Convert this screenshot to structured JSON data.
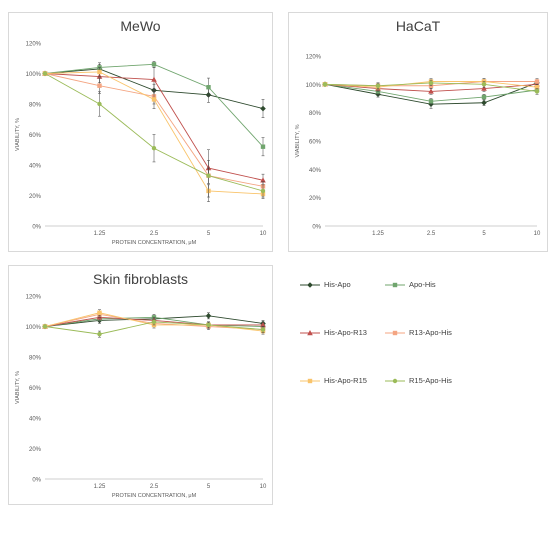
{
  "chart_data": [
    {
      "type": "line",
      "title": "MeWo",
      "xlabel": "PROTEIN CONCENTRATION, μM",
      "ylabel": "VIABILITY, %",
      "categories": [
        "",
        "1.25",
        "2.5",
        "5",
        "10"
      ],
      "ylim": [
        0,
        120
      ],
      "yticks": [
        "0%",
        "20%",
        "40%",
        "60%",
        "80%",
        "100%",
        "120%"
      ],
      "series": [
        {
          "name": "His-Apo",
          "values": [
            100,
            103,
            89,
            86,
            77
          ],
          "err": [
            0,
            3,
            4,
            5,
            6
          ]
        },
        {
          "name": "Apo-His",
          "values": [
            100,
            104,
            106,
            91,
            52
          ],
          "err": [
            0,
            3,
            2,
            6,
            6
          ]
        },
        {
          "name": "His-Apo-R13",
          "values": [
            100,
            98,
            96,
            38,
            30
          ],
          "err": [
            0,
            4,
            8,
            5,
            4
          ]
        },
        {
          "name": "R13-Apo-His",
          "values": [
            100,
            92,
            85,
            33,
            26
          ],
          "err": [
            0,
            5,
            5,
            5,
            3
          ]
        },
        {
          "name": "His-Apo-R15",
          "values": [
            100,
            101,
            83,
            23,
            21
          ],
          "err": [
            0,
            3,
            6,
            4,
            3
          ]
        },
        {
          "name": "R15-Apo-His",
          "values": [
            100,
            80,
            51,
            33,
            23
          ],
          "err": [
            0,
            8,
            9,
            17,
            4
          ]
        }
      ]
    },
    {
      "type": "line",
      "title": "HaCaT",
      "xlabel": "",
      "ylabel": "VIABILITY, %",
      "categories": [
        "",
        "1.25",
        "2.5",
        "5",
        "10"
      ],
      "ylim": [
        0,
        120
      ],
      "yticks": [
        "0%",
        "20%",
        "40%",
        "60%",
        "80%",
        "100%",
        "120%"
      ],
      "series": [
        {
          "name": "His-Apo",
          "values": [
            100,
            93,
            86,
            87,
            101
          ],
          "err": [
            0,
            2,
            3,
            2,
            2
          ]
        },
        {
          "name": "Apo-His",
          "values": [
            100,
            95,
            88,
            91,
            96
          ],
          "err": [
            0,
            2,
            2,
            2,
            2
          ]
        },
        {
          "name": "His-Apo-R13",
          "values": [
            100,
            97,
            95,
            97,
            100
          ],
          "err": [
            0,
            2,
            2,
            2,
            2
          ]
        },
        {
          "name": "R13-Apo-His",
          "values": [
            100,
            99,
            99,
            102,
            102
          ],
          "err": [
            0,
            2,
            2,
            2,
            2
          ]
        },
        {
          "name": "His-Apo-R15",
          "values": [
            100,
            98,
            102,
            102,
            98
          ],
          "err": [
            0,
            2,
            2,
            2,
            2
          ]
        },
        {
          "name": "R15-Apo-His",
          "values": [
            100,
            99,
            101,
            100,
            95
          ],
          "err": [
            0,
            2,
            2,
            2,
            2
          ]
        }
      ]
    },
    {
      "type": "line",
      "title": "Skin fibroblasts",
      "xlabel": "PROTEIN CONCENTRATION, μM",
      "ylabel": "VIABILITY, %",
      "categories": [
        "",
        "1.25",
        "2.5",
        "5",
        "10"
      ],
      "ylim": [
        0,
        120
      ],
      "yticks": [
        "0%",
        "20%",
        "40%",
        "60%",
        "80%",
        "100%",
        "120%"
      ],
      "series": [
        {
          "name": "His-Apo",
          "values": [
            100,
            104,
            105,
            107,
            102
          ],
          "err": [
            0,
            2,
            2,
            2,
            2
          ]
        },
        {
          "name": "Apo-His",
          "values": [
            100,
            105,
            106,
            101,
            100
          ],
          "err": [
            0,
            2,
            2,
            2,
            2
          ]
        },
        {
          "name": "His-Apo-R13",
          "values": [
            100,
            106,
            104,
            101,
            101
          ],
          "err": [
            0,
            2,
            2,
            2,
            2
          ]
        },
        {
          "name": "R13-Apo-His",
          "values": [
            100,
            108,
            102,
            100,
            98
          ],
          "err": [
            0,
            2,
            2,
            2,
            2
          ]
        },
        {
          "name": "His-Apo-R15",
          "values": [
            100,
            109,
            101,
            101,
            97
          ],
          "err": [
            0,
            2,
            2,
            2,
            2
          ]
        },
        {
          "name": "R15-Apo-His",
          "values": [
            100,
            95,
            103,
            101,
            98
          ],
          "err": [
            0,
            2,
            2,
            2,
            2
          ]
        }
      ]
    }
  ],
  "legend": {
    "placement": "bottom-right",
    "items": [
      {
        "name": "His-Apo",
        "color": "#2e4a2e",
        "marker": "diamond"
      },
      {
        "name": "Apo-His",
        "color": "#70a56e",
        "marker": "square"
      },
      {
        "name": "His-Apo-R13",
        "color": "#c0504d",
        "marker": "triangle"
      },
      {
        "name": "R13-Apo-His",
        "color": "#f4a582",
        "marker": "square"
      },
      {
        "name": "His-Apo-R15",
        "color": "#f9c46b",
        "marker": "square"
      },
      {
        "name": "R15-Apo-His",
        "color": "#9bbb59",
        "marker": "circle"
      }
    ]
  }
}
